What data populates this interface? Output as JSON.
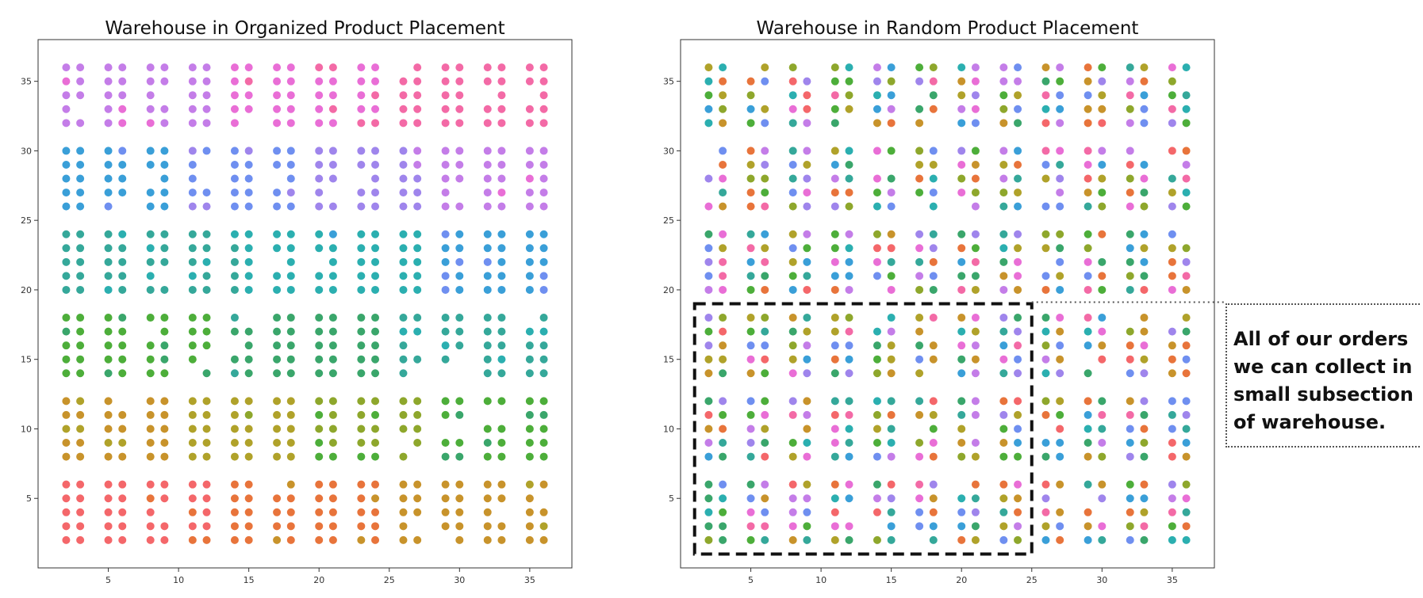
{
  "chart_data": [
    {
      "type": "scatter",
      "title": "Warehouse in Organized Product Placement",
      "xlabel": "",
      "ylabel": "",
      "xlim": [
        0,
        38
      ],
      "ylim": [
        0,
        38
      ],
      "xticks": [
        5,
        10,
        15,
        20,
        25,
        30,
        35
      ],
      "yticks": [
        5,
        10,
        15,
        20,
        25,
        30,
        35
      ],
      "grid": false,
      "layout": {
        "column_pairs": [
          [
            2,
            3
          ],
          [
            5,
            6
          ],
          [
            8,
            9
          ],
          [
            11,
            12
          ],
          [
            14,
            15
          ],
          [
            17,
            18
          ],
          [
            20,
            21
          ],
          [
            23,
            24
          ],
          [
            26,
            27
          ],
          [
            29,
            30
          ],
          [
            32,
            33
          ],
          [
            35,
            36
          ]
        ],
        "row_blocks": [
          [
            2,
            3,
            4,
            5,
            6
          ],
          [
            8,
            9,
            10,
            11,
            12
          ],
          [
            14,
            15,
            16,
            17,
            18
          ],
          [
            20,
            21,
            22,
            23,
            24
          ],
          [
            26,
            27,
            28,
            29,
            30
          ],
          [
            32,
            33,
            34,
            35,
            36
          ]
        ]
      },
      "points": "one product per shelf slot; products sorted by category and stored in contiguous blocks (bottom: red/orange, then olive/green, green/teal, teal/blue, blue/purple, top: magenta/pink)",
      "sort": "organized",
      "palette": [
        "#f4676a",
        "#e8743b",
        "#c8932b",
        "#b0a22a",
        "#8ea72c",
        "#4dae3a",
        "#3aa66b",
        "#35a89a",
        "#2bafb0",
        "#3a9fd8",
        "#6f8ff0",
        "#9f85ec",
        "#c47de8",
        "#e96ed6",
        "#f36aa6"
      ]
    },
    {
      "type": "scatter",
      "title": "Warehouse in Random Product Placement",
      "xlabel": "",
      "ylabel": "",
      "xlim": [
        0,
        38
      ],
      "ylim": [
        0,
        38
      ],
      "xticks": [
        5,
        10,
        15,
        20,
        25,
        30,
        35
      ],
      "yticks": [
        5,
        10,
        15,
        20,
        25,
        30,
        35
      ],
      "grid": false,
      "sort": "random",
      "highlight_region": {
        "x": [
          1,
          25
        ],
        "y": [
          1,
          19
        ],
        "style": "dashed"
      },
      "palette": [
        "#f4676a",
        "#e8743b",
        "#c8932b",
        "#b0a22a",
        "#8ea72c",
        "#4dae3a",
        "#3aa66b",
        "#35a89a",
        "#2bafb0",
        "#3a9fd8",
        "#6f8ff0",
        "#9f85ec",
        "#c47de8",
        "#e96ed6",
        "#f36aa6"
      ]
    }
  ],
  "annotation": {
    "lines": [
      "All of our orders",
      "we can collect in",
      "small subsection",
      "of warehouse."
    ]
  }
}
